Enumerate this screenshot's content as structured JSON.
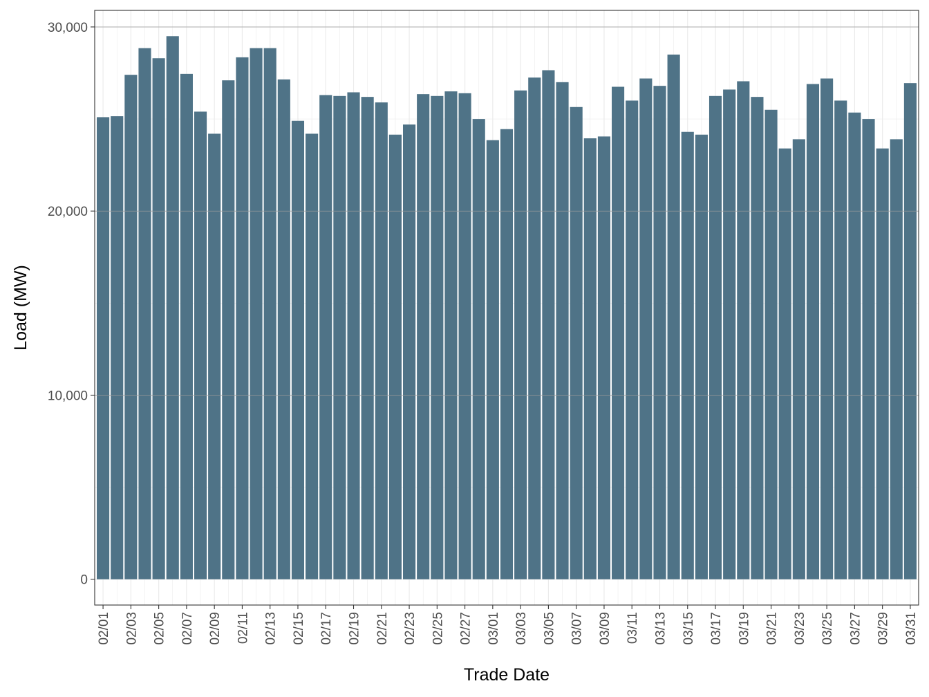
{
  "chart_data": {
    "type": "bar",
    "xlabel": "Trade Date",
    "ylabel": "Load (MW)",
    "ylim": [
      -1400,
      30900
    ],
    "yticks": [
      0,
      10000,
      20000,
      30000
    ],
    "ytick_labels": [
      "0",
      "10,000",
      "20,000",
      "30,000"
    ],
    "bar_color": "#4f7387",
    "grid": true,
    "legend": "none",
    "categories": [
      "02/01",
      "02/02",
      "02/03",
      "02/04",
      "02/05",
      "02/06",
      "02/07",
      "02/08",
      "02/09",
      "02/10",
      "02/11",
      "02/12",
      "02/13",
      "02/14",
      "02/15",
      "02/16",
      "02/17",
      "02/18",
      "02/19",
      "02/20",
      "02/21",
      "02/22",
      "02/23",
      "02/24",
      "02/25",
      "02/26",
      "02/27",
      "02/28",
      "03/01",
      "03/02",
      "03/03",
      "03/04",
      "03/05",
      "03/06",
      "03/07",
      "03/08",
      "03/09",
      "03/10",
      "03/11",
      "03/12",
      "03/13",
      "03/14",
      "03/15",
      "03/16",
      "03/17",
      "03/18",
      "03/19",
      "03/20",
      "03/21",
      "03/22",
      "03/23",
      "03/24",
      "03/25",
      "03/26",
      "03/27",
      "03/28",
      "03/29",
      "03/30",
      "03/31"
    ],
    "xtick_labels": [
      "02/01",
      "02/03",
      "02/05",
      "02/07",
      "02/09",
      "02/11",
      "02/13",
      "02/15",
      "02/17",
      "02/19",
      "02/21",
      "02/23",
      "02/25",
      "02/27",
      "03/01",
      "03/03",
      "03/05",
      "03/07",
      "03/09",
      "03/11",
      "03/13",
      "03/15",
      "03/17",
      "03/19",
      "03/21",
      "03/23",
      "03/25",
      "03/27",
      "03/29",
      "03/31"
    ],
    "values": [
      25100,
      25150,
      27400,
      28850,
      28300,
      29500,
      27450,
      25400,
      24200,
      27100,
      28350,
      28850,
      28850,
      27150,
      24900,
      24200,
      26300,
      26250,
      26450,
      26200,
      25900,
      24150,
      24700,
      26350,
      26250,
      26500,
      26400,
      25000,
      23850,
      24450,
      26550,
      27250,
      27650,
      27000,
      25650,
      23950,
      24050,
      26750,
      26000,
      27200,
      26800,
      28500,
      24300,
      24150,
      26250,
      26600,
      27050,
      26200,
      25500,
      23400,
      23900,
      26900,
      27200,
      26000,
      25350,
      25000,
      23400,
      23900,
      26950
    ]
  }
}
